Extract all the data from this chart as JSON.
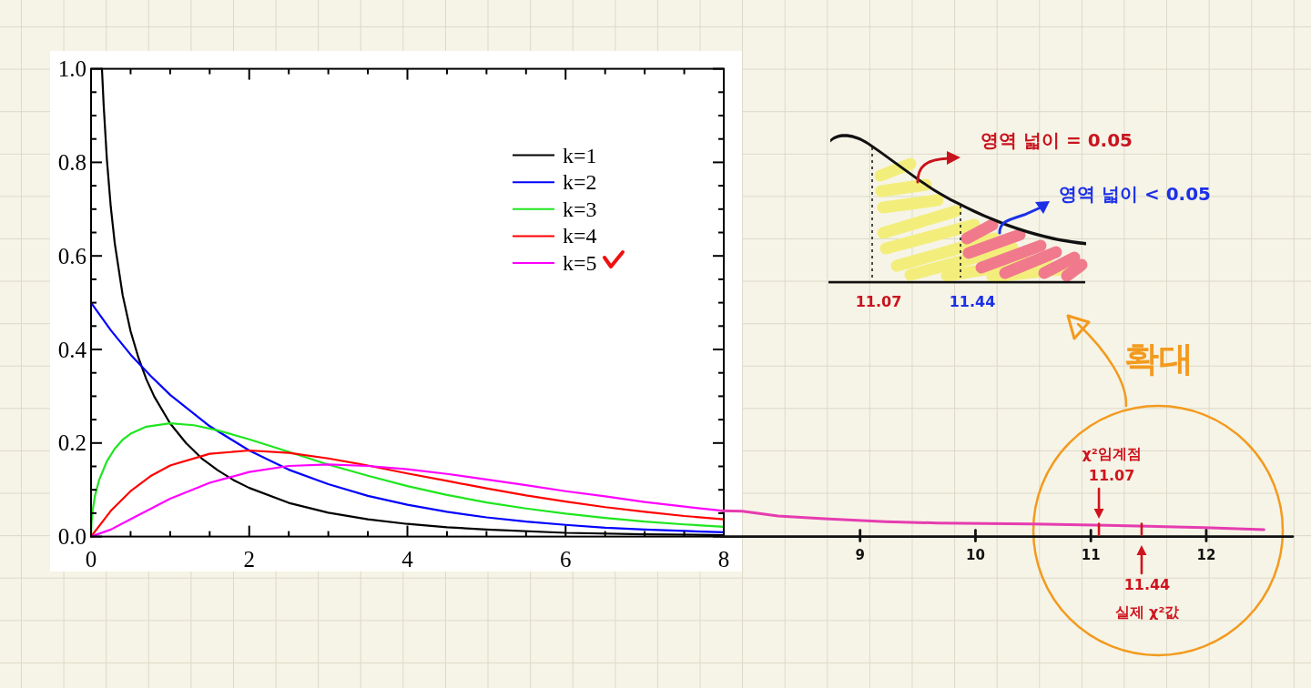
{
  "chart_data": [
    {
      "type": "line",
      "legend": "top right",
      "xlim": [
        0,
        8
      ],
      "ylim": [
        0,
        1
      ],
      "xticks": [
        0,
        {
          "value": 0.5,
          "label": null
        },
        {
          "value": 1,
          "label": null
        },
        {
          "value": 1.5,
          "label": null
        },
        2,
        {
          "value": 2.5,
          "label": null
        },
        {
          "value": 3,
          "label": null
        },
        {
          "value": 3.5,
          "label": null
        },
        4,
        {
          "value": 4.5,
          "label": null
        },
        {
          "value": 5,
          "label": null
        },
        {
          "value": 5.5,
          "label": null
        },
        6,
        {
          "value": 6.5,
          "label": null
        },
        {
          "value": 7,
          "label": null
        },
        {
          "value": 7.5,
          "label": null
        },
        8
      ],
      "yticks": [
        {
          "value": 0,
          "label": "0.0"
        },
        {
          "value": 0.05,
          "label": null
        },
        {
          "value": 0.1,
          "label": null
        },
        {
          "value": 0.15,
          "label": null
        },
        0.2,
        {
          "value": 0.25,
          "label": null
        },
        {
          "value": 0.3,
          "label": null
        },
        {
          "value": 0.35,
          "label": null
        },
        0.4,
        {
          "value": 0.45,
          "label": null
        },
        {
          "value": 0.5,
          "label": null
        },
        {
          "value": 0.55,
          "label": null
        },
        0.6,
        {
          "value": 0.65,
          "label": null
        },
        {
          "value": 0.7,
          "label": null
        },
        {
          "value": 0.75,
          "label": null
        },
        0.8,
        {
          "value": 0.85,
          "label": null
        },
        {
          "value": 0.9,
          "label": null
        },
        {
          "value": 0.95,
          "label": null
        },
        {
          "value": 1,
          "label": "1.0"
        }
      ],
      "series": [
        {
          "name": "k=1",
          "color": "#000000",
          "x": [
            0.138,
            0.16,
            0.2,
            0.25,
            0.3,
            0.4,
            0.5,
            0.6,
            0.7,
            0.8,
            1,
            1.2,
            1.4,
            1.6,
            1.8,
            2,
            2.5,
            3,
            3.5,
            4,
            4.5,
            5,
            6,
            7,
            8
          ],
          "values": [
            1.0,
            0.921,
            0.807,
            0.704,
            0.627,
            0.516,
            0.439,
            0.382,
            0.336,
            0.299,
            0.242,
            0.2,
            0.167,
            0.142,
            0.121,
            0.104,
            0.072,
            0.051,
            0.037,
            0.027,
            0.02,
            0.015,
            0.008,
            0.005,
            0.003
          ]
        },
        {
          "name": "k=2",
          "color": "#0000ff",
          "x": [
            0,
            0.25,
            0.5,
            0.75,
            1,
            1.5,
            2,
            2.5,
            3,
            3.5,
            4,
            4.5,
            5,
            5.5,
            6,
            6.5,
            7,
            7.5,
            8
          ],
          "values": [
            0.5,
            0.441,
            0.389,
            0.344,
            0.303,
            0.236,
            0.184,
            0.143,
            0.112,
            0.087,
            0.068,
            0.053,
            0.041,
            0.032,
            0.025,
            0.019,
            0.015,
            0.012,
            0.009
          ]
        },
        {
          "name": "k=3",
          "color": "#1ee61e",
          "x": [
            0,
            0.005,
            0.02,
            0.05,
            0.1,
            0.2,
            0.3,
            0.4,
            0.5,
            0.7,
            1,
            1.3,
            1.6,
            2,
            2.5,
            3,
            3.5,
            4,
            4.5,
            5,
            5.5,
            6,
            6.5,
            7,
            7.5,
            8
          ],
          "values": [
            0,
            0.028,
            0.056,
            0.087,
            0.12,
            0.161,
            0.188,
            0.207,
            0.22,
            0.235,
            0.242,
            0.238,
            0.227,
            0.208,
            0.181,
            0.154,
            0.13,
            0.108,
            0.089,
            0.073,
            0.06,
            0.049,
            0.04,
            0.032,
            0.026,
            0.021
          ]
        },
        {
          "name": "k=4",
          "color": "#ff0000",
          "x": [
            0,
            0.25,
            0.5,
            0.75,
            1,
            1.5,
            2,
            2.5,
            3,
            3.5,
            4,
            4.5,
            5,
            5.5,
            6,
            6.5,
            7,
            7.5,
            8
          ],
          "values": [
            0,
            0.055,
            0.097,
            0.129,
            0.152,
            0.177,
            0.184,
            0.179,
            0.167,
            0.152,
            0.135,
            0.119,
            0.103,
            0.088,
            0.075,
            0.063,
            0.053,
            0.044,
            0.037
          ]
        },
        {
          "name": "k=5",
          "color": "#ff00ff",
          "x": [
            0,
            0.25,
            0.5,
            0.75,
            1,
            1.5,
            2,
            2.5,
            3,
            3.5,
            4,
            4.5,
            5,
            5.5,
            6,
            6.5,
            7,
            7.5,
            8
          ],
          "values": [
            0,
            0.015,
            0.037,
            0.059,
            0.081,
            0.115,
            0.138,
            0.151,
            0.154,
            0.151,
            0.144,
            0.134,
            0.122,
            0.11,
            0.097,
            0.086,
            0.074,
            0.064,
            0.055
          ]
        }
      ]
    },
    {
      "type": "line",
      "xlim": [
        7.8,
        12.75
      ],
      "ylim": [
        0,
        1
      ],
      "xticks": [
        9,
        10,
        11,
        12
      ],
      "tick_labels": "x",
      "series": [
        {
          "color": "#e63cb0",
          "x": [
            7.8,
            7.98,
            8.29,
            8.69,
            9.22,
            9.67,
            10.49,
            11.14,
            11.98,
            12.5
          ],
          "values": [
            0.055,
            0.054,
            0.044,
            0.038,
            0.032,
            0.029,
            0.027,
            0.024,
            0.019,
            0.015
          ]
        }
      ],
      "ref_lines": [
        {
          "axis": "x",
          "value": 11.07,
          "label": "χ²임계점 11.07",
          "color": "#d0141e"
        },
        {
          "axis": "x",
          "value": 11.44,
          "label": "11.44 실제 χ²값",
          "color": "#d0141e"
        }
      ],
      "annotations": [
        "확대",
        "영역 넓이 = 0.05",
        "영역 넓이 < 0.05",
        "11.07",
        "11.44"
      ]
    }
  ]
}
